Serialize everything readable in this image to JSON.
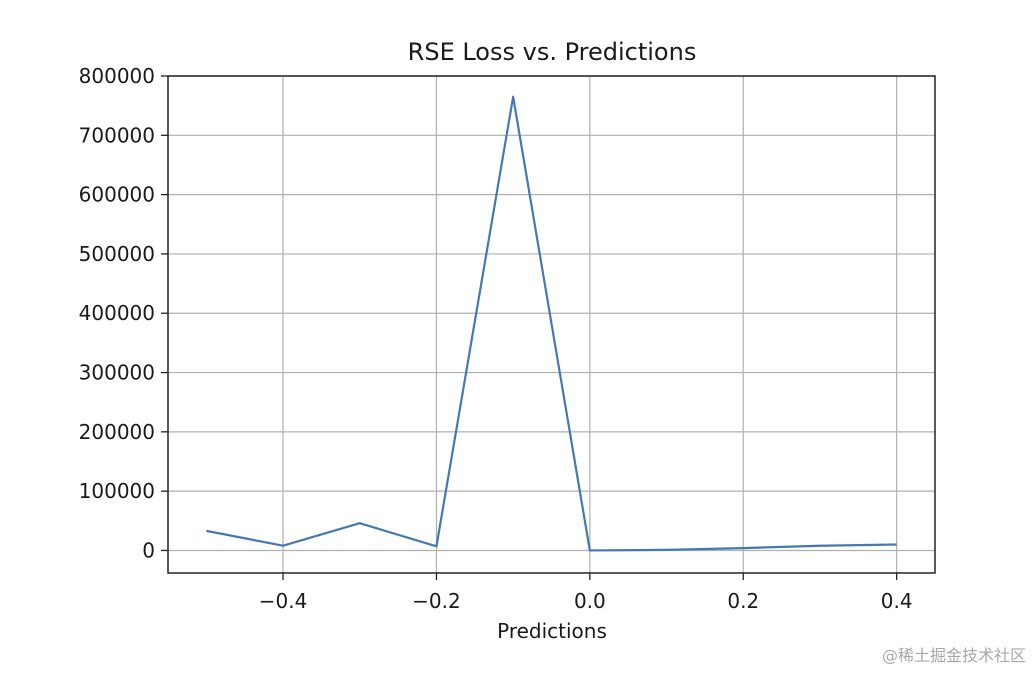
{
  "chart_data": {
    "type": "line",
    "title": "RSE Loss vs. Predictions",
    "xlabel": "Predictions",
    "ylabel": "",
    "xlim": [
      -0.55,
      0.45
    ],
    "ylim": [
      -38000,
      800000
    ],
    "xticks": [
      -0.4,
      -0.2,
      0.0,
      0.2,
      0.4
    ],
    "xtick_labels": [
      "−0.4",
      "−0.2",
      "0.0",
      "0.2",
      "0.4"
    ],
    "yticks": [
      0,
      100000,
      200000,
      300000,
      400000,
      500000,
      600000,
      700000,
      800000
    ],
    "ytick_labels": [
      "0",
      "100000",
      "200000",
      "300000",
      "400000",
      "500000",
      "600000",
      "700000",
      "800000"
    ],
    "grid": true,
    "series": [
      {
        "color": "#4678b0",
        "x": [
          -0.5,
          -0.4,
          -0.3,
          -0.2,
          -0.1,
          0.0,
          0.1,
          0.2,
          0.3,
          0.4
        ],
        "y": [
          33000,
          8000,
          46000,
          7000,
          765000,
          0,
          1000,
          4000,
          8000,
          10000
        ]
      }
    ]
  },
  "watermark": "@稀土掘金技术社区"
}
